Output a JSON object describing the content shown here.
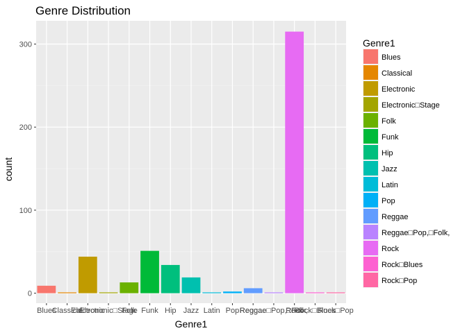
{
  "chart_data": {
    "type": "bar",
    "title": "Genre Distribution",
    "xlabel": "Genre1",
    "ylabel": "count",
    "ylim": [
      -12,
      328
    ],
    "yticks": [
      0,
      100,
      200,
      300
    ],
    "grid": true,
    "legend_position": "right",
    "legend_title": "Genre1",
    "series": [
      {
        "category": "Blues",
        "legend": "Blues",
        "value": 9,
        "color": "#F8766D"
      },
      {
        "category": "Classical",
        "legend": "Classical",
        "value": 1,
        "color": "#E58700"
      },
      {
        "category": "Electronic",
        "legend": "Electronic",
        "value": 44,
        "color": "#C09B00"
      },
      {
        "category": "Electronic□Stage",
        "legend": "Electronic□Stage",
        "value": 1,
        "color": "#A3A500"
      },
      {
        "category": "Folk",
        "legend": "Folk",
        "value": 13,
        "color": "#6BB100"
      },
      {
        "category": "Funk",
        "legend": "Funk",
        "value": 51,
        "color": "#00BA38"
      },
      {
        "category": "Hip",
        "legend": "Hip",
        "value": 34,
        "color": "#00BF7D"
      },
      {
        "category": "Jazz",
        "legend": "Jazz",
        "value": 19,
        "color": "#00C0AF"
      },
      {
        "category": "Latin",
        "legend": "Latin",
        "value": 1,
        "color": "#00BCD8"
      },
      {
        "category": "Pop",
        "legend": "Pop",
        "value": 2,
        "color": "#00B0F6"
      },
      {
        "category": "Reggae",
        "legend": "Reggae",
        "value": 6,
        "color": "#619CFF"
      },
      {
        "category": "Reggae□Pop,□Folk,",
        "legend": "Reggae□Pop,□Folk,",
        "value": 1,
        "color": "#B983FF"
      },
      {
        "category": "Rock",
        "legend": "Rock",
        "value": 315,
        "color": "#E76BF3"
      },
      {
        "category": "Rock□Blues",
        "legend": "Rock□Blues",
        "value": 1,
        "color": "#FD61D1"
      },
      {
        "category": "Rock□Pop",
        "legend": "Rock□Pop",
        "value": 1,
        "color": "#FF67A4"
      }
    ]
  }
}
